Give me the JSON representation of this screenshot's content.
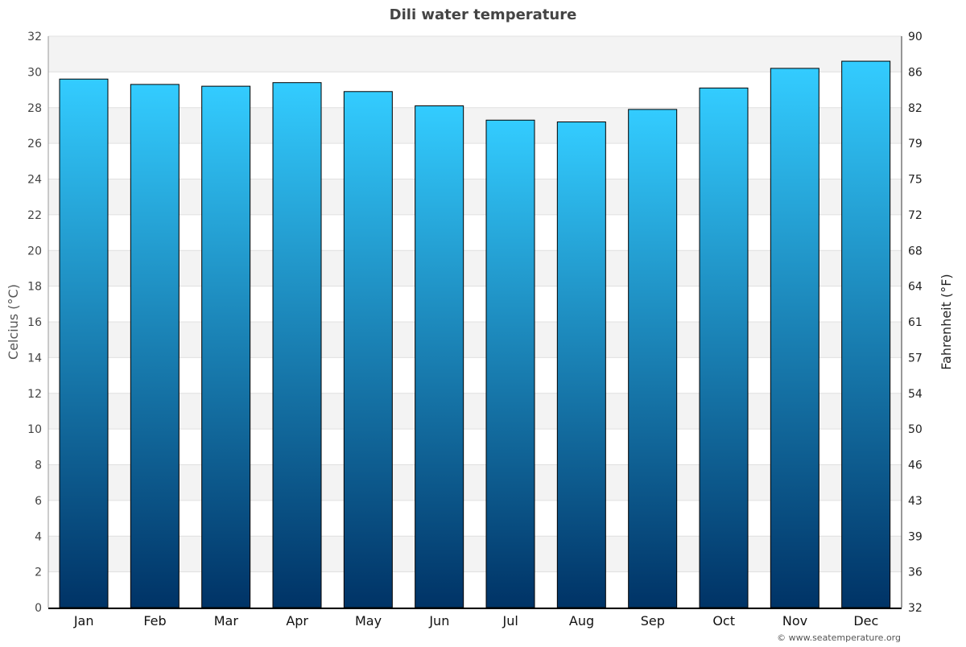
{
  "chart_data": {
    "type": "bar",
    "title": "Dili water temperature",
    "categories": [
      "Jan",
      "Feb",
      "Mar",
      "Apr",
      "May",
      "Jun",
      "Jul",
      "Aug",
      "Sep",
      "Oct",
      "Nov",
      "Dec"
    ],
    "values": [
      29.6,
      29.3,
      29.2,
      29.4,
      28.9,
      28.1,
      27.3,
      27.2,
      27.9,
      29.1,
      30.2,
      30.6
    ],
    "ylabel": "Celcius (°C)",
    "y2label": "Fahrenheit (°F)",
    "ylim": [
      0,
      32
    ],
    "yticks": [
      "0",
      "2",
      "4",
      "6",
      "8",
      "10",
      "12",
      "14",
      "16",
      "18",
      "20",
      "22",
      "24",
      "26",
      "28",
      "30",
      "32"
    ],
    "y2ticks": [
      "32",
      "36",
      "39",
      "43",
      "46",
      "50",
      "54",
      "57",
      "61",
      "64",
      "68",
      "72",
      "75",
      "79",
      "82",
      "86",
      "90"
    ],
    "grid": true,
    "colors": {
      "bar_top": "#33ccff",
      "bar_bottom": "#003366",
      "band": "#f3f3f3"
    }
  },
  "credit": "© www.seatemperature.org"
}
